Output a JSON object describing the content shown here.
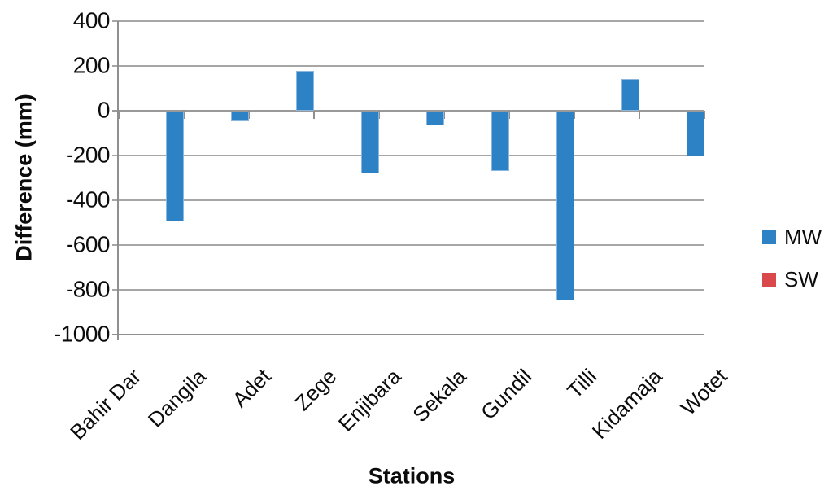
{
  "chart_data": {
    "type": "bar",
    "title": "",
    "xlabel": "Stations",
    "ylabel": "Difference (mm)",
    "categories": [
      "Bahir Dar",
      "Dangila",
      "Adet",
      "Zege",
      "Enjibara",
      "Sekala",
      "Gundil",
      "Tilli",
      "Kidamaja",
      "Wotet"
    ],
    "series": [
      {
        "name": "MW",
        "color": "#2C82C4",
        "values": [
          0,
          -490,
          -45,
          175,
          -275,
          -60,
          -265,
          -845,
          140,
          -200
        ]
      },
      {
        "name": "SW",
        "color": "#D9484A",
        "values": [
          0,
          0,
          0,
          0,
          0,
          0,
          0,
          0,
          0,
          0
        ]
      }
    ],
    "ylim": [
      -1000,
      400
    ],
    "ytick_step": 200,
    "yticks": [
      400,
      200,
      0,
      -200,
      -400,
      -600,
      -800,
      -1000
    ],
    "grid": true,
    "legend_position": "right",
    "colors": {
      "gridline": "#a6a6a6",
      "axis": "#8f8f8f",
      "text": "#0c0c0c"
    }
  }
}
